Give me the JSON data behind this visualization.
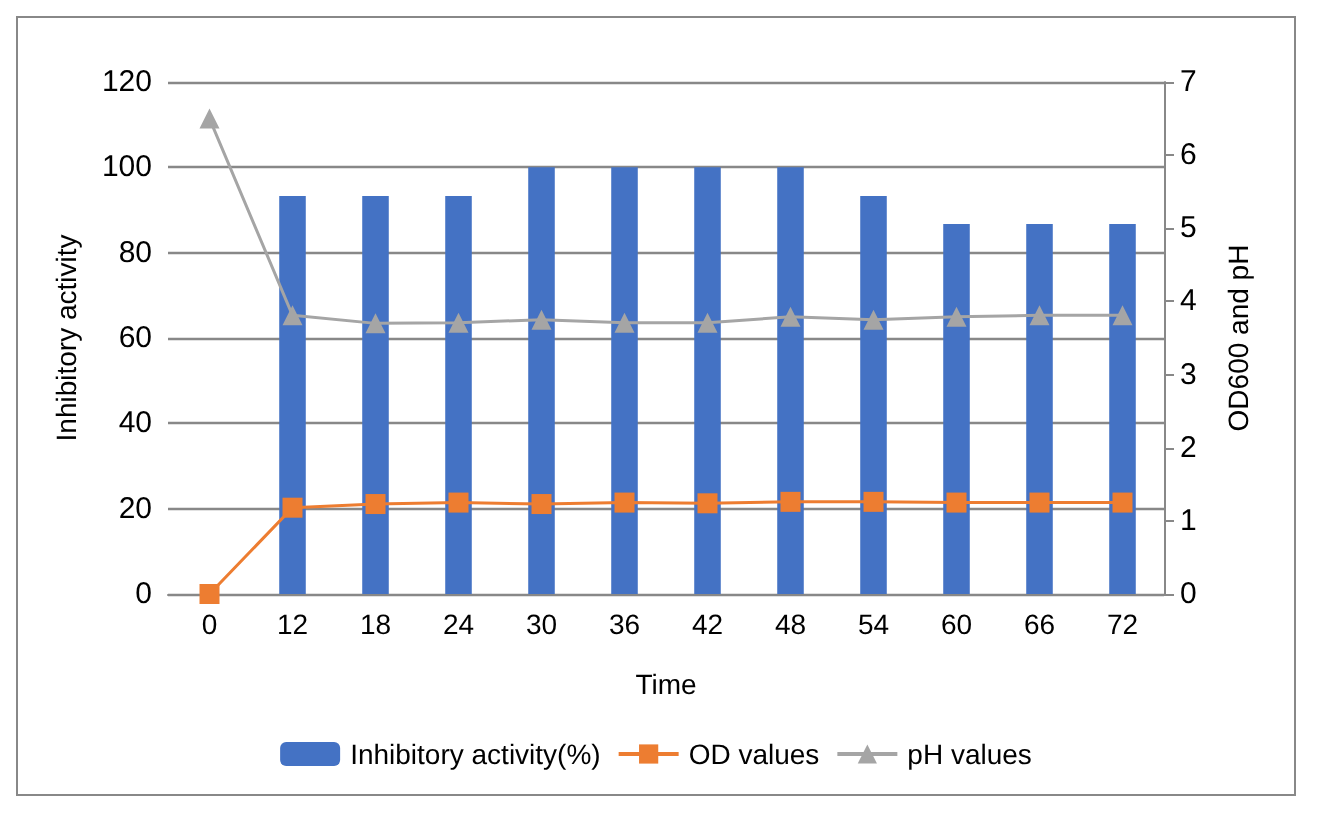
{
  "chart_data": {
    "type": "bar",
    "xlabel": "Time",
    "ylabel": "Inhibitory activity",
    "y2label": "OD600 and pH",
    "categories": [
      "0",
      "12",
      "18",
      "24",
      "30",
      "36",
      "42",
      "48",
      "54",
      "60",
      "66",
      "72"
    ],
    "series": [
      {
        "name": "Inhibitory activity(%)",
        "color": "#4472c4",
        "values": [
          0,
          93.3,
          93.3,
          93.3,
          100,
          100,
          100,
          100,
          93.3,
          86.7,
          86.7,
          86.7
        ]
      },
      {
        "name": "OD values",
        "type": "line",
        "axis": "y2",
        "marker": "square",
        "color": "#ed7d31",
        "values": [
          0,
          1.18,
          1.23,
          1.25,
          1.23,
          1.25,
          1.24,
          1.26,
          1.26,
          1.25,
          1.25,
          1.25
        ]
      },
      {
        "name": "pH values",
        "type": "line",
        "axis": "y2",
        "marker": "triangle",
        "color": "#a5a5a5",
        "values": [
          6.5,
          3.81,
          3.7,
          3.71,
          3.75,
          3.71,
          3.71,
          3.79,
          3.75,
          3.79,
          3.81,
          3.81
        ]
      }
    ],
    "ylim": [
      0,
      120
    ],
    "yticks": [
      0,
      20,
      40,
      60,
      80,
      100,
      120
    ],
    "y2lim": [
      0,
      7
    ],
    "y2ticks": [
      0,
      1,
      2,
      3,
      4,
      5,
      6,
      7
    ],
    "grid": "y",
    "legend": "bottom"
  }
}
